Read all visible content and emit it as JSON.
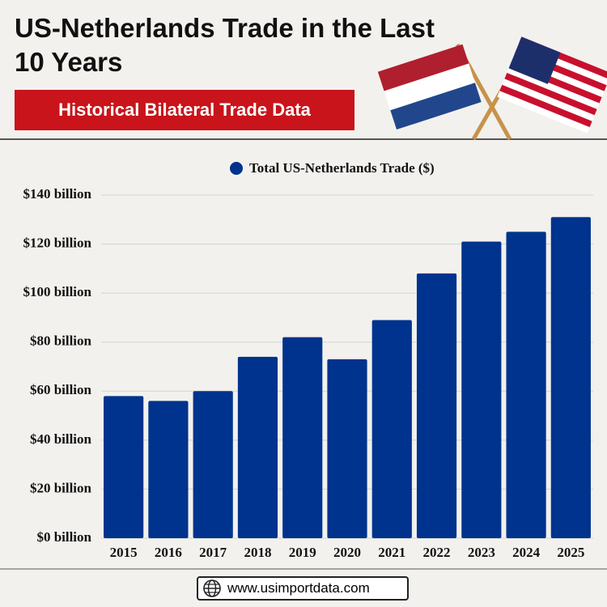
{
  "chart_data": {
    "type": "bar",
    "title": "US-Netherlands Trade in the Last 10 Years",
    "subtitle": "Historical Bilateral Trade Data",
    "categories": [
      "2015",
      "2016",
      "2017",
      "2018",
      "2019",
      "2020",
      "2021",
      "2022",
      "2023",
      "2024",
      "2025"
    ],
    "series": [
      {
        "name": "Total US-Netherlands Trade ($)",
        "color": "#00338d",
        "values": [
          58,
          56,
          60,
          74,
          82,
          73,
          89,
          108,
          121,
          125,
          131
        ]
      }
    ],
    "ylim": [
      0,
      140
    ],
    "yticks": [
      {
        "value": 0,
        "label": "$0 billion"
      },
      {
        "value": 20,
        "label": "$20 billion"
      },
      {
        "value": 40,
        "label": "$40 billion"
      },
      {
        "value": 60,
        "label": "$60 billion"
      },
      {
        "value": 80,
        "label": "$80 billion"
      },
      {
        "value": 100,
        "label": "$100 billion"
      },
      {
        "value": 120,
        "label": "$120 billion"
      },
      {
        "value": 140,
        "label": "$140 billion"
      }
    ],
    "grid": true,
    "legend": "top"
  },
  "footer": {
    "url": "www.usimportdata.com"
  }
}
